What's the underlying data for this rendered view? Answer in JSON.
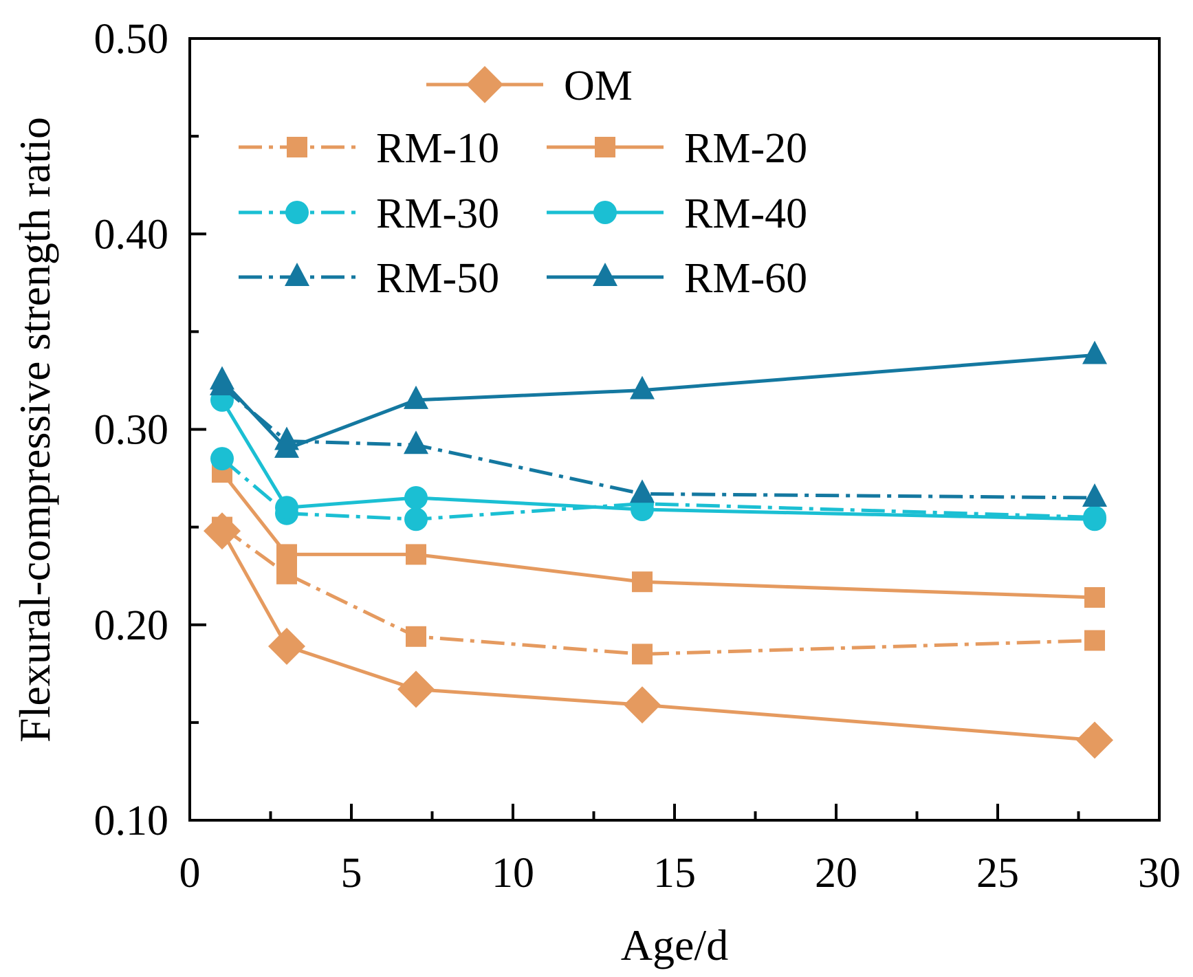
{
  "chart_data": {
    "type": "line",
    "xlabel": "Age/d",
    "ylabel": "Flexural-compressive strength ratio",
    "xlim": [
      0,
      30
    ],
    "ylim": [
      0.1,
      0.5
    ],
    "x_ticks": [
      0,
      5,
      10,
      15,
      20,
      25,
      30
    ],
    "x_tick_labels": [
      "0",
      "5",
      "10",
      "15",
      "20",
      "25",
      "30"
    ],
    "y_ticks": [
      0.1,
      0.2,
      0.3,
      0.4,
      0.5
    ],
    "y_tick_labels": [
      "0.10",
      "0.20",
      "0.30",
      "0.40",
      "0.50"
    ],
    "grid": false,
    "legend_position": "top-center",
    "x": [
      1,
      3,
      7,
      14,
      28
    ],
    "series": [
      {
        "name": "OM",
        "values": [
          0.248,
          0.189,
          0.167,
          0.159,
          0.141
        ],
        "color": "#E59A5F",
        "dash": "solid",
        "marker": "diamond"
      },
      {
        "name": "RM-10",
        "values": [
          0.25,
          0.226,
          0.194,
          0.185,
          0.192
        ],
        "color": "#E59A5F",
        "dash": "dashdot",
        "marker": "square"
      },
      {
        "name": "RM-20",
        "values": [
          0.278,
          0.236,
          0.236,
          0.222,
          0.214
        ],
        "color": "#E59A5F",
        "dash": "solid",
        "marker": "square"
      },
      {
        "name": "RM-30",
        "values": [
          0.285,
          0.257,
          0.254,
          0.262,
          0.255
        ],
        "color": "#1BBFD3",
        "dash": "dashdot",
        "marker": "circle"
      },
      {
        "name": "RM-40",
        "values": [
          0.315,
          0.26,
          0.265,
          0.259,
          0.254
        ],
        "color": "#1BBFD3",
        "dash": "solid",
        "marker": "circle"
      },
      {
        "name": "RM-50",
        "values": [
          0.322,
          0.294,
          0.292,
          0.267,
          0.265
        ],
        "color": "#1478A0",
        "dash": "dashdot",
        "marker": "triangle"
      },
      {
        "name": "RM-60",
        "values": [
          0.325,
          0.29,
          0.315,
          0.32,
          0.338
        ],
        "color": "#1478A0",
        "dash": "solid",
        "marker": "triangle"
      }
    ]
  }
}
